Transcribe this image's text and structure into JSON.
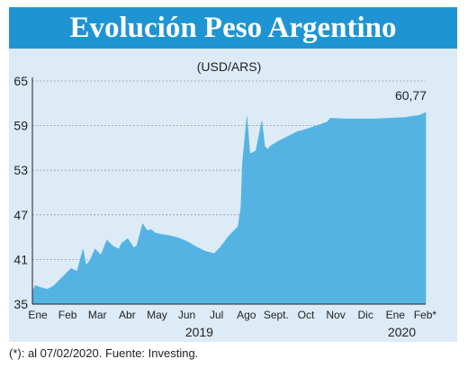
{
  "title": "Evolución Peso Argentino",
  "footnote": "(*): al 07/02/2020. Fuente: Investing.",
  "colors": {
    "header": "#1e95d2",
    "panel": "#dcebf6",
    "area": "#55b3e4",
    "text": "#222222"
  },
  "chart_data": {
    "type": "area",
    "subtitle": "(USD/ARS)",
    "ylim": [
      35,
      65
    ],
    "yticks": [
      35,
      41,
      47,
      53,
      59,
      65
    ],
    "ytick_labels": [
      "35",
      "41",
      "47",
      "53",
      "59",
      "65"
    ],
    "xlim": [
      0,
      13.2
    ],
    "month_labels": [
      "Ene",
      "Feb",
      "Mar",
      "Abr",
      "May",
      "Jun",
      "Jul",
      "Ago",
      "Sept.",
      "Oct",
      "Nov",
      "Dic",
      "Ene",
      "Feb*"
    ],
    "month_positions": [
      0.0,
      1.0,
      2.0,
      3.0,
      4.0,
      5.0,
      6.0,
      7.0,
      8.0,
      9.0,
      10.0,
      11.0,
      12.0,
      13.0
    ],
    "year_labels": [
      {
        "label": "2019",
        "x": 5.6
      },
      {
        "label": "2020",
        "x": 12.4
      }
    ],
    "last_value_label": "60,77",
    "grid": true,
    "series": [
      {
        "x": [
          0.0,
          0.1,
          0.3,
          0.5,
          0.7,
          0.9,
          1.1,
          1.3,
          1.5,
          1.7,
          1.8,
          1.95,
          2.1,
          2.3,
          2.5,
          2.7,
          2.9,
          3.0,
          3.2,
          3.4,
          3.5,
          3.7,
          3.85,
          4.0,
          4.1,
          4.3,
          4.6,
          4.9,
          5.2,
          5.5,
          5.8,
          6.1,
          6.3,
          6.6,
          6.9,
          7.0,
          7.05,
          7.2,
          7.3,
          7.5,
          7.7,
          7.8,
          7.9,
          8.0,
          8.3,
          8.6,
          8.9,
          9.1,
          9.4,
          9.7,
          9.9,
          10.0,
          10.5,
          11.0,
          11.5,
          12.0,
          12.5,
          13.0,
          13.2
        ],
        "y": [
          36.8,
          37.5,
          37.2,
          37.0,
          37.4,
          38.2,
          39.0,
          39.8,
          39.4,
          42.4,
          40.2,
          41.0,
          42.4,
          41.6,
          43.6,
          42.8,
          42.4,
          43.2,
          43.8,
          42.6,
          42.8,
          45.8,
          44.9,
          45.0,
          44.6,
          44.4,
          44.2,
          43.9,
          43.4,
          42.7,
          42.1,
          41.8,
          42.6,
          44.2,
          45.4,
          48.0,
          54.0,
          60.2,
          55.2,
          55.6,
          59.6,
          56.2,
          55.8,
          56.3,
          57.0,
          57.6,
          58.2,
          58.4,
          58.8,
          59.2,
          59.5,
          60.0,
          59.9,
          59.9,
          59.9,
          60.0,
          60.1,
          60.4,
          60.77
        ]
      }
    ]
  }
}
